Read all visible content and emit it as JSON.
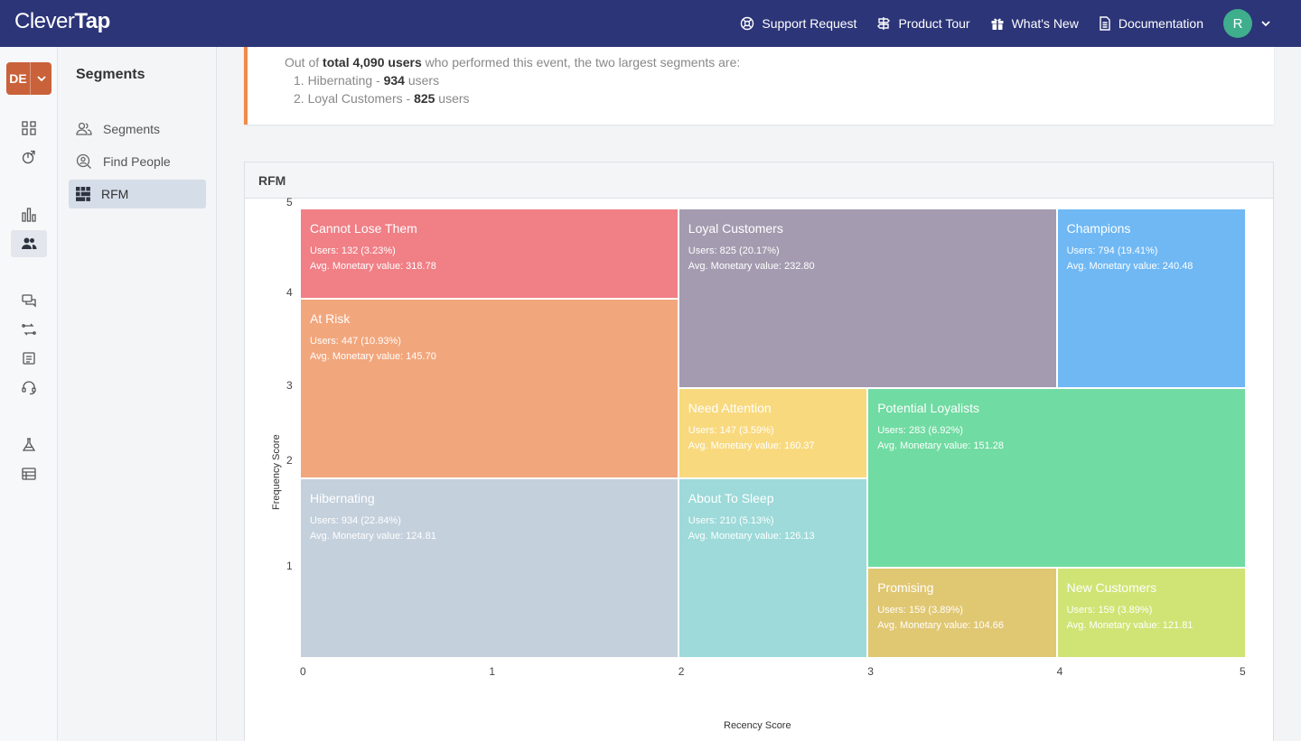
{
  "topbar": {
    "logo_a": "Clever",
    "logo_b": "Tap",
    "links": [
      "Support Request",
      "Product Tour",
      "What's New",
      "Documentation"
    ],
    "avatar": "R"
  },
  "account": {
    "label": "DE"
  },
  "sidenav": {
    "title": "Segments",
    "items": [
      "Segments",
      "Find People",
      "RFM"
    ]
  },
  "summary": {
    "line1_pre": "Out of ",
    "line1_bold": "total 4,090 users",
    "line1_post": " who performed this event, the two largest segments are:",
    "item1_pre": "1. Hibernating - ",
    "item1_bold": "934",
    "item1_post": " users",
    "item2_pre": "2. Loyal Customers - ",
    "item2_bold": "825",
    "item2_post": " users"
  },
  "rfm": {
    "title": "RFM",
    "xlabel": "Recency Score",
    "ylabel": "Frequency Score",
    "x_ticks": [
      "0",
      "1",
      "2",
      "3",
      "4",
      "5"
    ],
    "y_ticks": [
      "5",
      "4",
      "3",
      "2",
      "1"
    ]
  },
  "chart_data": {
    "type": "heatmap",
    "xlabel": "Recency Score",
    "ylabel": "Frequency Score",
    "xlim": [
      0,
      5
    ],
    "ylim": [
      0,
      5
    ],
    "segments": [
      {
        "name": "Cannot Lose Them",
        "users": "Users: 132 (3.23%)",
        "avg": "Avg. Monetary value: 318.78",
        "x0": 0,
        "x1": 2,
        "y0": 4,
        "y1": 5,
        "color": "#f07f86"
      },
      {
        "name": "Loyal Customers",
        "users": "Users: 825 (20.17%)",
        "avg": "Avg. Monetary value: 232.80",
        "x0": 2,
        "x1": 4,
        "y0": 3,
        "y1": 5,
        "color": "#a49bb0"
      },
      {
        "name": "Champions",
        "users": "Users: 794 (19.41%)",
        "avg": "Avg. Monetary value: 240.48",
        "x0": 4,
        "x1": 5,
        "y0": 3,
        "y1": 5,
        "color": "#6fb8f4"
      },
      {
        "name": "At Risk",
        "users": "Users: 447 (10.93%)",
        "avg": "Avg. Monetary value: 145.70",
        "x0": 0,
        "x1": 2,
        "y0": 2,
        "y1": 4,
        "color": "#f2a67c"
      },
      {
        "name": "Need Attention",
        "users": "Users: 147 (3.59%)",
        "avg": "Avg. Monetary value: 160.37",
        "x0": 2,
        "x1": 3,
        "y0": 2,
        "y1": 3,
        "color": "#f8d97e"
      },
      {
        "name": "Potential Loyalists",
        "users": "Users: 283 (6.92%)",
        "avg": "Avg. Monetary value: 151.28",
        "x0": 3,
        "x1": 5,
        "y0": 1,
        "y1": 3,
        "color": "#70dba2"
      },
      {
        "name": "Hibernating",
        "users": "Users: 934 (22.84%)",
        "avg": "Avg. Monetary value: 124.81",
        "x0": 0,
        "x1": 2,
        "y0": 0,
        "y1": 2,
        "color": "#c4d0dc"
      },
      {
        "name": "About To Sleep",
        "users": "Users: 210 (5.13%)",
        "avg": "Avg. Monetary value: 126.13",
        "x0": 2,
        "x1": 3,
        "y0": 0,
        "y1": 2,
        "color": "#9ddad9"
      },
      {
        "name": "Promising",
        "users": "Users: 159 (3.89%)",
        "avg": "Avg. Monetary value: 104.66",
        "x0": 3,
        "x1": 4,
        "y0": 0,
        "y1": 1,
        "color": "#e0c772"
      },
      {
        "name": "New Customers",
        "users": "Users: 159 (3.89%)",
        "avg": "Avg. Monetary value: 121.81",
        "x0": 4,
        "x1": 5,
        "y0": 0,
        "y1": 1,
        "color": "#cfe474"
      }
    ]
  }
}
